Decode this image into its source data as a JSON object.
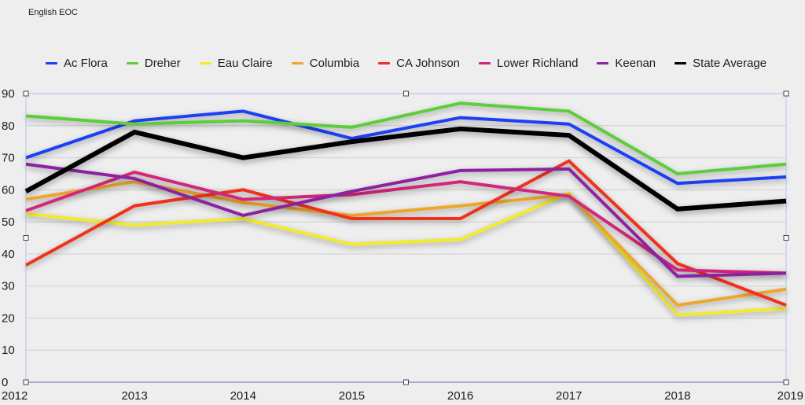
{
  "chart_data": {
    "type": "line",
    "title": "English EOC",
    "xlabel": "",
    "ylabel": "",
    "x": [
      "2012",
      "2013",
      "2014",
      "2015",
      "2016",
      "2017",
      "2018",
      "2019"
    ],
    "ylim": [
      0,
      90
    ],
    "yticks": [
      0,
      10,
      20,
      30,
      40,
      50,
      60,
      70,
      80,
      90
    ],
    "grid": true,
    "legend_position": "top",
    "series": [
      {
        "name": "Ac Flora",
        "color": "#1a3ff5",
        "values": [
          70,
          81.5,
          84.5,
          76,
          82.5,
          80.5,
          62,
          64
        ]
      },
      {
        "name": "Dreher",
        "color": "#5ccd3a",
        "values": [
          83,
          80.5,
          81.5,
          79.5,
          87,
          84.5,
          65,
          68
        ]
      },
      {
        "name": "Eau Claire",
        "color": "#f2ea2a",
        "values": [
          52.5,
          49,
          51,
          43,
          44.5,
          59,
          21,
          23
        ]
      },
      {
        "name": "Columbia",
        "color": "#eda72c",
        "values": [
          57,
          62.5,
          56,
          52,
          55,
          58.5,
          24,
          29
        ]
      },
      {
        "name": "CA Johnson",
        "color": "#f0301c",
        "values": [
          36.5,
          55,
          60,
          51,
          51,
          69,
          37,
          24
        ]
      },
      {
        "name": "Lower Richland",
        "color": "#d4257a",
        "values": [
          53.5,
          65.5,
          57,
          58.5,
          62.5,
          58,
          35,
          34
        ]
      },
      {
        "name": "Keenan",
        "color": "#8d22a0",
        "values": [
          68,
          63.5,
          52,
          59.5,
          66,
          66.5,
          33,
          34
        ]
      },
      {
        "name": "State Average",
        "color": "#000000",
        "values": [
          59.5,
          78,
          70,
          75,
          79,
          77,
          54,
          56.5
        ]
      }
    ]
  }
}
